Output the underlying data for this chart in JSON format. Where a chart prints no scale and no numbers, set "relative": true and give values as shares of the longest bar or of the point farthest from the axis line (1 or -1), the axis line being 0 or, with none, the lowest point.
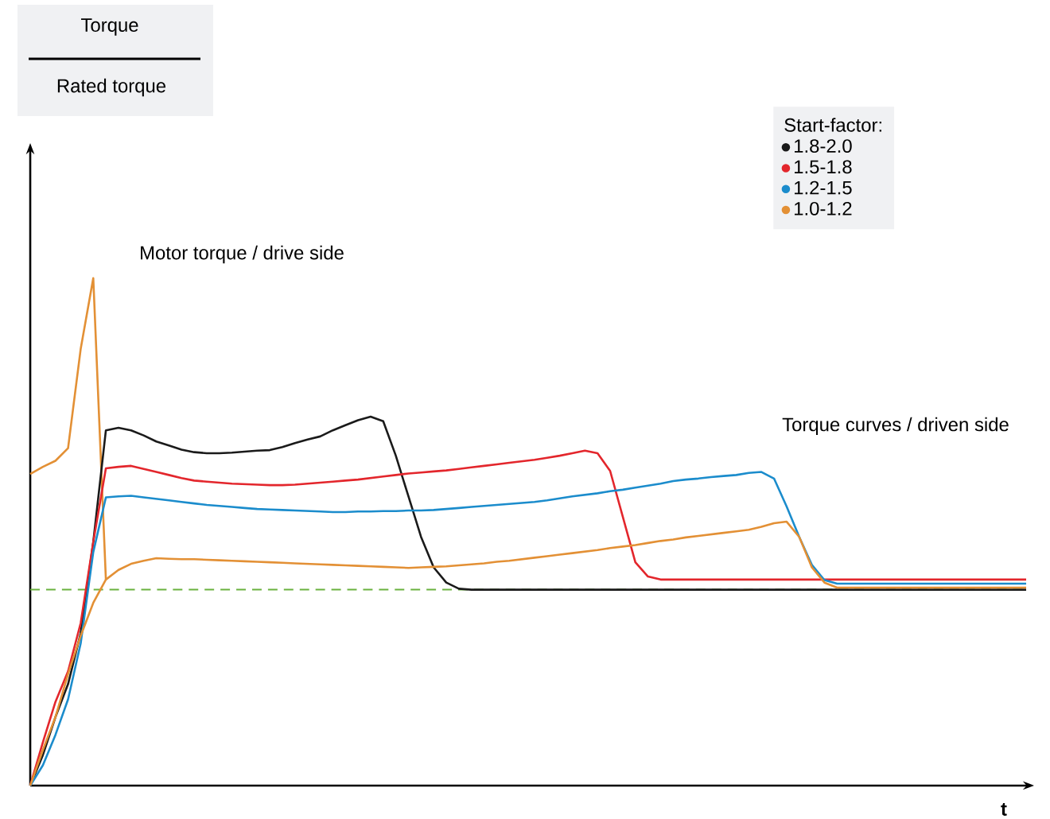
{
  "chart_data": {
    "type": "line",
    "relative": true,
    "xlabel": "t",
    "legend_title": "Start-factor:",
    "legend": "top right",
    "categories": [
      null,
      null,
      null,
      null,
      null,
      null,
      null,
      null,
      null,
      null,
      null,
      null,
      null,
      null,
      null,
      null,
      null,
      null,
      null,
      null,
      null,
      null,
      null,
      null,
      null,
      null,
      null,
      null,
      null,
      null,
      null,
      null,
      null,
      null,
      null,
      null,
      null,
      null,
      null,
      null,
      null,
      null,
      null,
      null,
      null,
      null,
      null,
      null,
      null,
      null,
      null,
      null,
      null,
      null,
      null,
      null,
      null,
      null,
      null,
      null,
      null,
      null,
      null,
      null,
      null,
      null,
      null,
      null,
      null,
      null,
      null,
      null,
      null,
      null,
      null,
      null,
      null,
      null,
      null,
      null
    ],
    "annotations": [
      "Torque",
      "Rated torque",
      "Motor torque / drive side",
      "Torque curves / driven side"
    ],
    "ref_lines": [
      {
        "axis": "y",
        "value": 0.386,
        "color": "#6ab23f",
        "line_style": "dashed"
      }
    ],
    "series": [
      {
        "name": "1.8-2.0",
        "color": "#1a1a1a",
        "values": [
          0,
          0.06,
          0.135,
          0.2,
          0.3,
          0.48,
          0.7,
          0.705,
          0.7,
          0.69,
          0.678,
          0.67,
          0.662,
          0.657,
          0.655,
          0.655,
          0.656,
          0.658,
          0.66,
          0.661,
          0.667,
          0.675,
          0.682,
          0.688,
          0.7,
          0.71,
          0.72,
          0.727,
          0.718,
          0.65,
          0.57,
          0.49,
          0.43,
          0.4,
          0.388,
          0.386,
          0.386,
          0.386,
          0.386,
          0.386,
          0.386,
          0.386,
          0.386,
          0.386,
          0.386,
          0.386,
          0.386,
          0.386,
          0.386,
          0.386,
          0.386,
          0.386,
          0.386,
          0.386,
          0.386,
          0.386,
          0.386,
          0.386,
          0.386,
          0.386,
          0.386,
          0.386,
          0.386,
          0.386,
          0.386,
          0.386,
          0.386,
          0.386,
          0.386,
          0.386,
          0.386,
          0.386,
          0.386,
          0.386,
          0.386,
          0.386,
          0.386,
          0.386,
          0.386,
          0.386
        ]
      },
      {
        "name": "1.5-1.8",
        "color": "#e3262c",
        "values": [
          0,
          0.085,
          0.165,
          0.225,
          0.32,
          0.48,
          0.625,
          0.628,
          0.63,
          0.624,
          0.618,
          0.612,
          0.606,
          0.601,
          0.599,
          0.597,
          0.595,
          0.594,
          0.593,
          0.592,
          0.592,
          0.593,
          0.595,
          0.597,
          0.599,
          0.601,
          0.603,
          0.606,
          0.609,
          0.612,
          0.615,
          0.617,
          0.619,
          0.621,
          0.624,
          0.627,
          0.63,
          0.633,
          0.636,
          0.639,
          0.642,
          0.646,
          0.65,
          0.655,
          0.66,
          0.655,
          0.62,
          0.53,
          0.44,
          0.412,
          0.406,
          0.406,
          0.406,
          0.406,
          0.406,
          0.406,
          0.406,
          0.406,
          0.406,
          0.406,
          0.406,
          0.406,
          0.406,
          0.406,
          0.406,
          0.406,
          0.406,
          0.406,
          0.406,
          0.406,
          0.406,
          0.406,
          0.406,
          0.406,
          0.406,
          0.406,
          0.406,
          0.406,
          0.406,
          0.406
        ]
      },
      {
        "name": "1.2-1.5",
        "color": "#1b8ccc",
        "values": [
          0,
          0.04,
          0.1,
          0.17,
          0.28,
          0.46,
          0.568,
          0.57,
          0.571,
          0.568,
          0.565,
          0.562,
          0.559,
          0.556,
          0.553,
          0.551,
          0.549,
          0.547,
          0.545,
          0.544,
          0.543,
          0.542,
          0.541,
          0.54,
          0.539,
          0.539,
          0.54,
          0.54,
          0.541,
          0.541,
          0.542,
          0.542,
          0.543,
          0.545,
          0.547,
          0.549,
          0.551,
          0.553,
          0.555,
          0.557,
          0.559,
          0.562,
          0.566,
          0.57,
          0.573,
          0.576,
          0.58,
          0.583,
          0.587,
          0.591,
          0.595,
          0.6,
          0.603,
          0.605,
          0.608,
          0.61,
          0.612,
          0.616,
          0.618,
          0.605,
          0.55,
          0.49,
          0.435,
          0.405,
          0.398,
          0.398,
          0.398,
          0.398,
          0.398,
          0.398,
          0.398,
          0.398,
          0.398,
          0.398,
          0.398,
          0.398,
          0.398,
          0.398,
          0.398,
          0.398
        ]
      },
      {
        "name": "1.0-1.2",
        "color": "#e39035",
        "values": [
          0,
          0.07,
          0.135,
          0.22,
          0.295,
          0.36,
          0.406,
          0.425,
          0.437,
          0.443,
          0.448,
          0.447,
          0.446,
          0.446,
          0.445,
          0.444,
          0.443,
          0.442,
          0.441,
          0.44,
          0.439,
          0.438,
          0.437,
          0.436,
          0.435,
          0.434,
          0.433,
          0.432,
          0.431,
          0.43,
          0.429,
          0.43,
          0.431,
          0.432,
          0.434,
          0.436,
          0.438,
          0.441,
          0.443,
          0.446,
          0.449,
          0.452,
          0.455,
          0.458,
          0.461,
          0.464,
          0.468,
          0.471,
          0.474,
          0.478,
          0.482,
          0.485,
          0.489,
          0.492,
          0.495,
          0.498,
          0.501,
          0.504,
          0.51,
          0.517,
          0.52,
          0.49,
          0.43,
          0.4,
          0.39,
          0.39,
          0.39,
          0.39,
          0.39,
          0.39,
          0.39,
          0.39,
          0.39,
          0.39,
          0.39,
          0.39,
          0.39,
          0.39,
          0.39,
          0.39
        ]
      },
      {
        "color": "#e39035",
        "values": [
          0.614,
          0.628,
          0.64,
          0.665,
          0.86,
          1.0,
          0.406,
          null,
          null,
          null,
          null,
          null,
          null,
          null,
          null,
          null,
          null,
          null,
          null,
          null,
          null,
          null,
          null,
          null,
          null,
          null,
          null,
          null,
          null,
          null,
          null,
          null,
          null,
          null,
          null,
          null,
          null,
          null,
          null,
          null,
          null,
          null,
          null,
          null,
          null,
          null,
          null,
          null,
          null,
          null,
          null,
          null,
          null,
          null,
          null,
          null,
          null,
          null,
          null,
          null,
          null,
          null,
          null,
          null,
          null,
          null,
          null,
          null,
          null,
          null,
          null,
          null,
          null,
          null,
          null,
          null,
          null,
          null,
          null,
          null
        ]
      }
    ]
  }
}
